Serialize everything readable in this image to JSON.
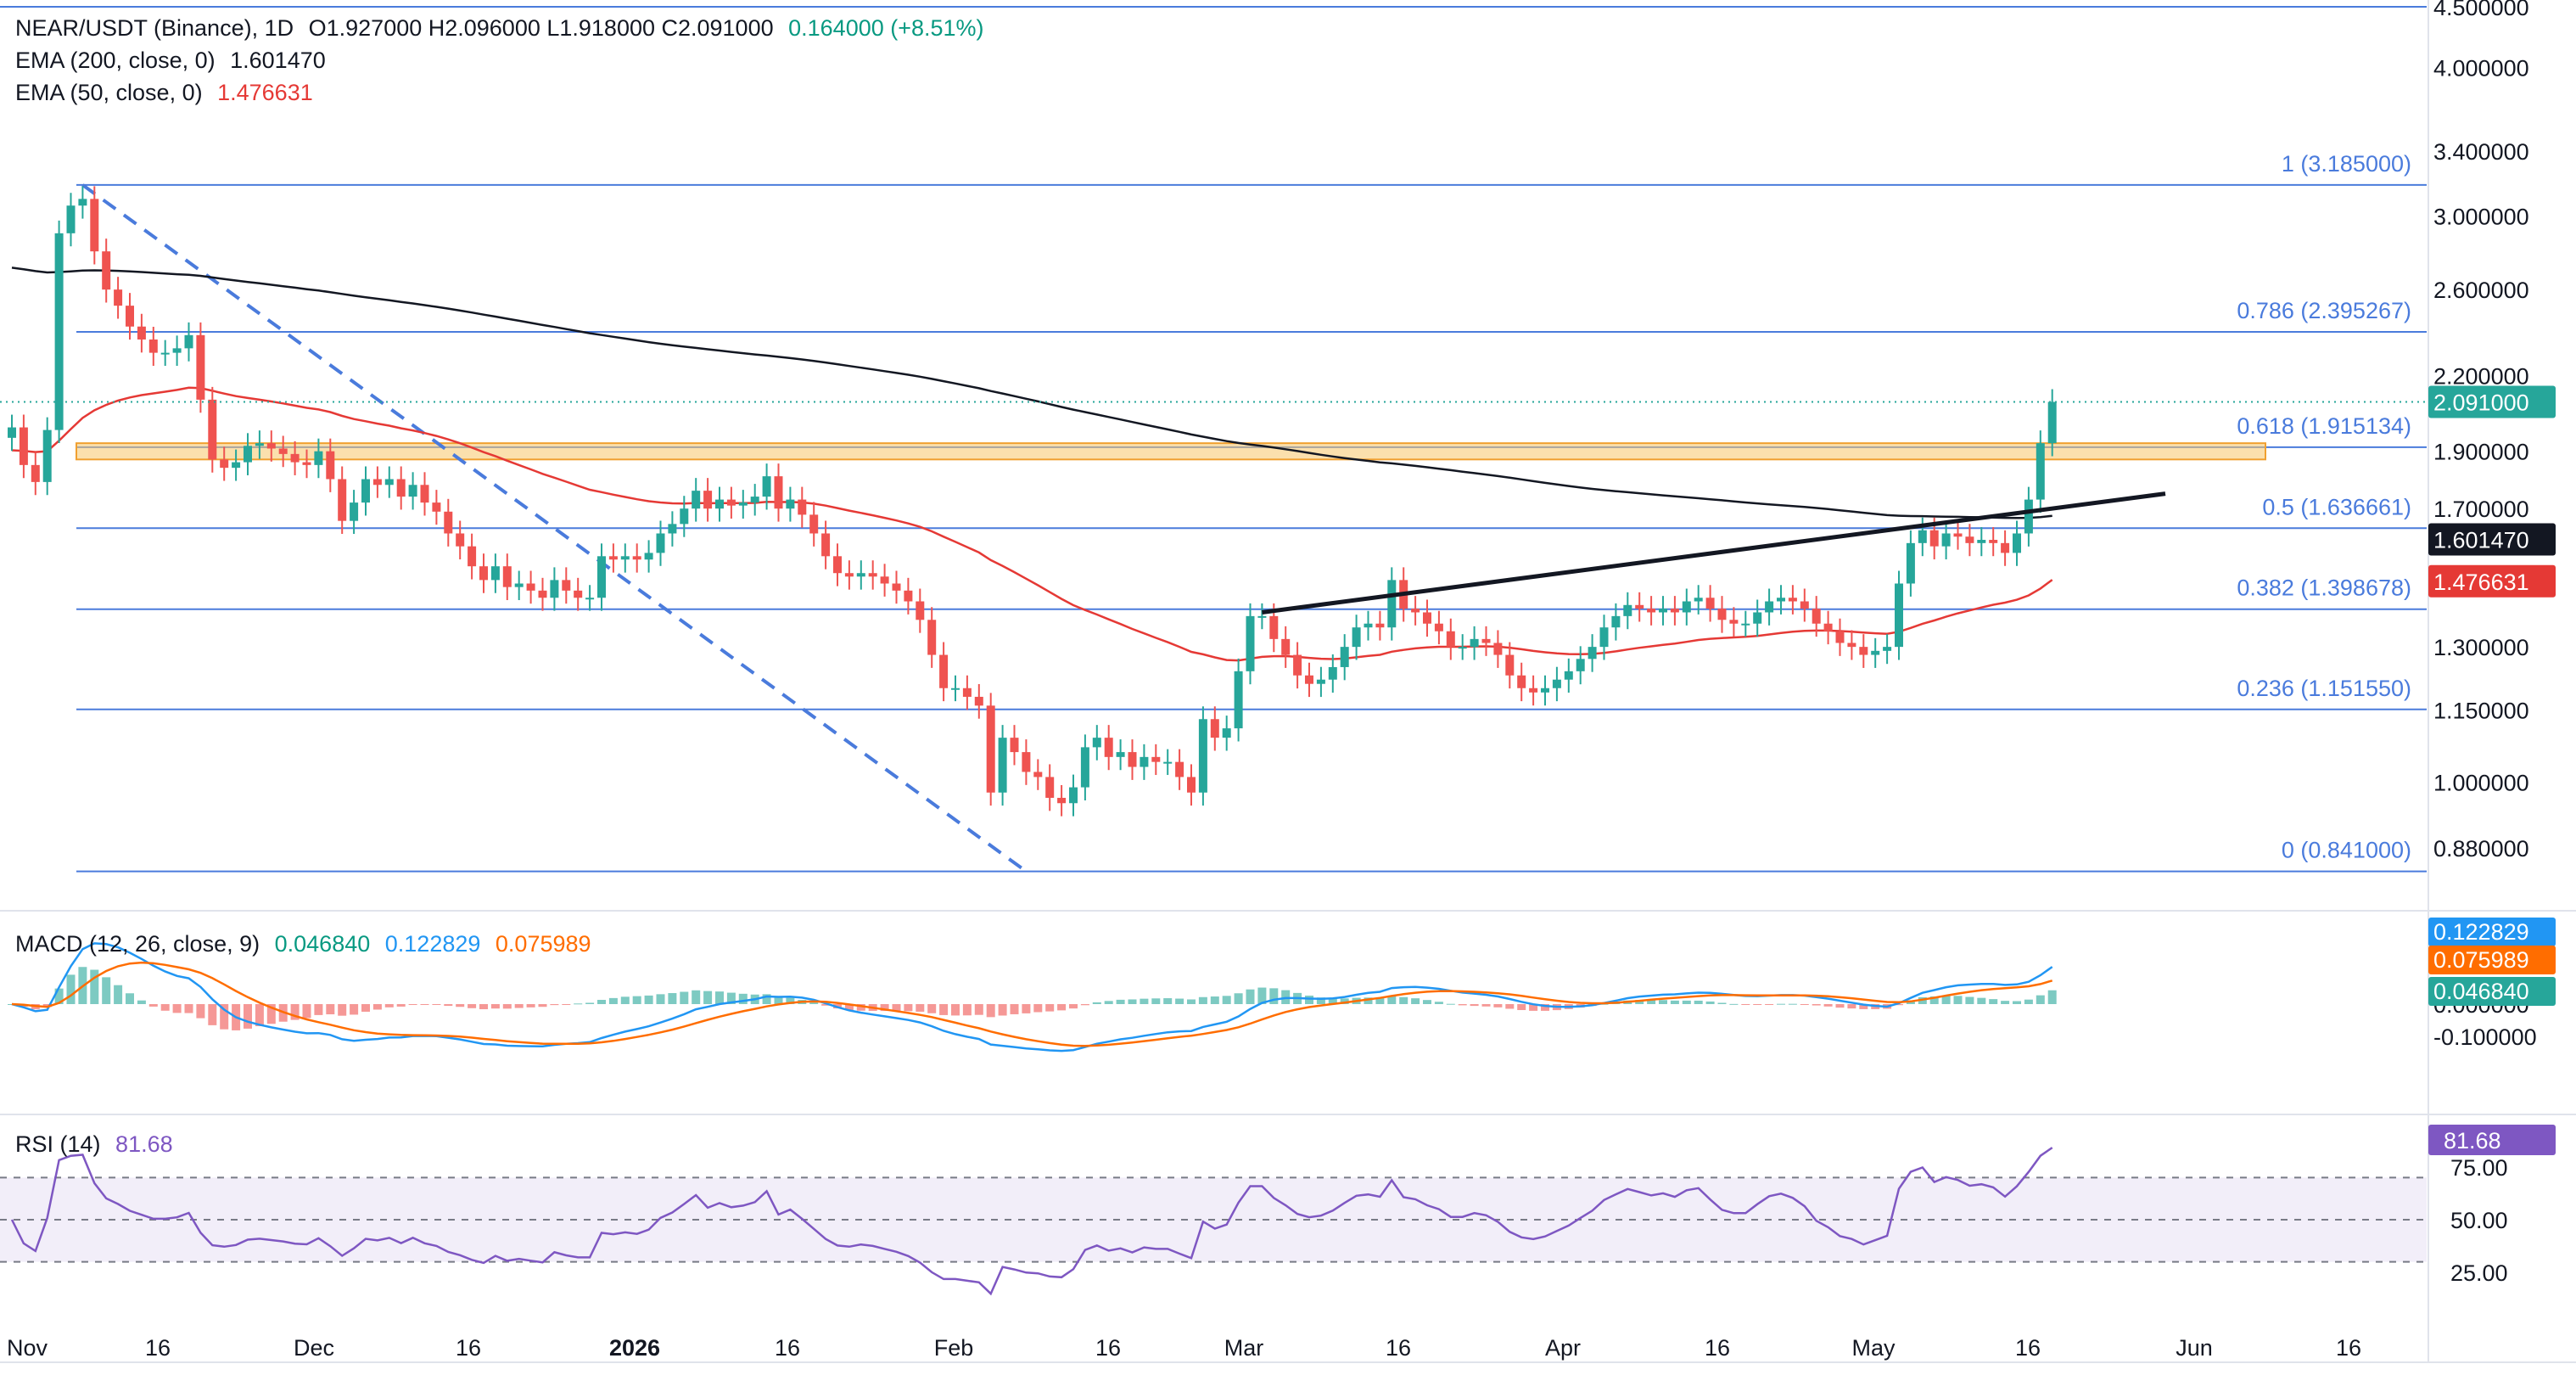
{
  "header": {
    "symbol": "NEAR/USDT (Binance), 1D",
    "ohlc": "O1.927000 H2.096000 L1.918000 C2.091000",
    "change": "0.164000 (+8.51%)",
    "ema200_label": "EMA (200, close, 0)",
    "ema200_value": "1.601470",
    "ema50_label": "EMA (50, close, 0)",
    "ema50_value": "1.476631"
  },
  "macd_header": {
    "label": "MACD (12, 26, close, 9)",
    "hist": "0.046840",
    "macd": "0.122829",
    "signal": "0.075989"
  },
  "rsi_header": {
    "label": "RSI (14)",
    "value": "81.68"
  },
  "colors": {
    "up": "#26a69a",
    "down": "#ef5350",
    "ema200": "#131722",
    "ema50": "#e53935",
    "fib": "#4a7bdc",
    "zone": "#f7c66a",
    "macd": "#2196f3",
    "signal": "#ff6d00",
    "rsi": "#7e57c2"
  },
  "chart_data": [
    {
      "type": "candlestick",
      "title": "NEAR/USDT (Binance), 1D",
      "y_scale": "log",
      "ylim": [
        0.8,
        4.5
      ],
      "price_ticks": [
        "4.500000",
        "4.000000",
        "3.400000",
        "3.000000",
        "2.600000",
        "2.200000",
        "1.900000",
        "1.700000",
        "1.300000",
        "1.150000",
        "1.000000",
        "0.880000"
      ],
      "x_ticks": [
        "Nov",
        "16",
        "Dec",
        "16",
        "2026",
        "16",
        "Feb",
        "16",
        "Mar",
        "16",
        "Apr",
        "16",
        "May",
        "16",
        "Jun",
        "16"
      ],
      "last_price": "2.091000",
      "ema200_last": "1.601470",
      "ema50_last": "1.476631",
      "fib_levels": [
        {
          "label": "1 (3.185000)",
          "value": 3.185
        },
        {
          "label": "0.786 (2.395267)",
          "value": 2.395267
        },
        {
          "label": "0.618 (1.915134)",
          "value": 1.915134
        },
        {
          "label": "0.5 (1.636661)",
          "value": 1.636661
        },
        {
          "label": "0.382 (1.398678)",
          "value": 1.398678
        },
        {
          "label": "0.236 (1.151550)",
          "value": 1.15155
        },
        {
          "label": "0 (0.841000)",
          "value": 0.841
        }
      ],
      "resistance_zone": [
        1.87,
        1.93
      ],
      "trendline": [
        1.39,
        1.75
      ],
      "closes": [
        1.99,
        1.85,
        1.79,
        1.98,
        2.9,
        3.06,
        3.1,
        2.8,
        2.6,
        2.52,
        2.42,
        2.36,
        2.3,
        2.3,
        2.32,
        2.38,
        2.1,
        1.87,
        1.84,
        1.86,
        1.92,
        1.93,
        1.91,
        1.89,
        1.86,
        1.85,
        1.9,
        1.8,
        1.66,
        1.72,
        1.8,
        1.78,
        1.8,
        1.74,
        1.78,
        1.72,
        1.69,
        1.62,
        1.58,
        1.52,
        1.48,
        1.52,
        1.46,
        1.47,
        1.45,
        1.43,
        1.48,
        1.45,
        1.43,
        1.43,
        1.55,
        1.54,
        1.55,
        1.54,
        1.56,
        1.62,
        1.65,
        1.7,
        1.76,
        1.7,
        1.73,
        1.71,
        1.72,
        1.74,
        1.81,
        1.7,
        1.73,
        1.68,
        1.62,
        1.55,
        1.5,
        1.49,
        1.5,
        1.49,
        1.47,
        1.45,
        1.42,
        1.37,
        1.28,
        1.2,
        1.2,
        1.18,
        1.16,
        0.98,
        1.09,
        1.06,
        1.02,
        1.01,
        0.97,
        0.96,
        0.99,
        1.07,
        1.09,
        1.05,
        1.06,
        1.03,
        1.05,
        1.04,
        1.04,
        1.01,
        0.98,
        1.13,
        1.09,
        1.11,
        1.24,
        1.38,
        1.38,
        1.32,
        1.28,
        1.23,
        1.21,
        1.22,
        1.25,
        1.3,
        1.35,
        1.36,
        1.35,
        1.48,
        1.4,
        1.39,
        1.36,
        1.34,
        1.3,
        1.3,
        1.32,
        1.31,
        1.28,
        1.23,
        1.2,
        1.19,
        1.2,
        1.22,
        1.24,
        1.27,
        1.3,
        1.35,
        1.38,
        1.41,
        1.4,
        1.39,
        1.4,
        1.39,
        1.42,
        1.43,
        1.4,
        1.37,
        1.36,
        1.36,
        1.39,
        1.42,
        1.43,
        1.42,
        1.4,
        1.36,
        1.34,
        1.31,
        1.3,
        1.28,
        1.29,
        1.3,
        1.47,
        1.59,
        1.63,
        1.58,
        1.62,
        1.61,
        1.59,
        1.6,
        1.59,
        1.56,
        1.62,
        1.73,
        1.93,
        2.091
      ],
      "rsi_levels": [
        70,
        50,
        30
      ],
      "rsi_ticks": [
        "75.00",
        "50.00",
        "25.00"
      ],
      "rsi_last": "81.68",
      "macd_ticks": [
        "0.000000",
        "-0.100000"
      ],
      "macd_values": {
        "hist": "0.046840",
        "macd": "0.122829",
        "signal": "0.075989"
      }
    }
  ]
}
